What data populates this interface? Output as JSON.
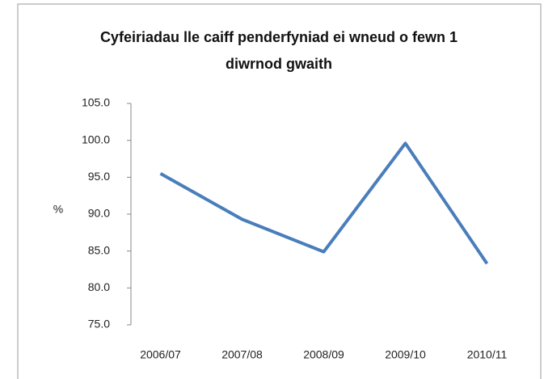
{
  "chart_data": {
    "type": "line",
    "title": "Cyfeiriadau lle caiff penderfyniad ei wneud o fewn 1 diwrnod gwaith",
    "ylabel": "%",
    "categories": [
      "2006/07",
      "2007/08",
      "2008/09",
      "2009/10",
      "2010/11"
    ],
    "series": [
      {
        "name": "%",
        "color": "#4a7ebb",
        "values": [
          95.5,
          89.3,
          84.9,
          99.6,
          83.3
        ]
      }
    ],
    "ylim": [
      75,
      105
    ],
    "yticks": [
      {
        "value": 75,
        "label": "75.0"
      },
      {
        "value": 80,
        "label": "80.0"
      },
      {
        "value": 85,
        "label": "85.0"
      },
      {
        "value": 90,
        "label": "90.0"
      },
      {
        "value": 95,
        "label": "95.0"
      },
      {
        "value": 100,
        "label": "100.0"
      },
      {
        "value": 105,
        "label": "105.0"
      }
    ],
    "grid": false
  }
}
